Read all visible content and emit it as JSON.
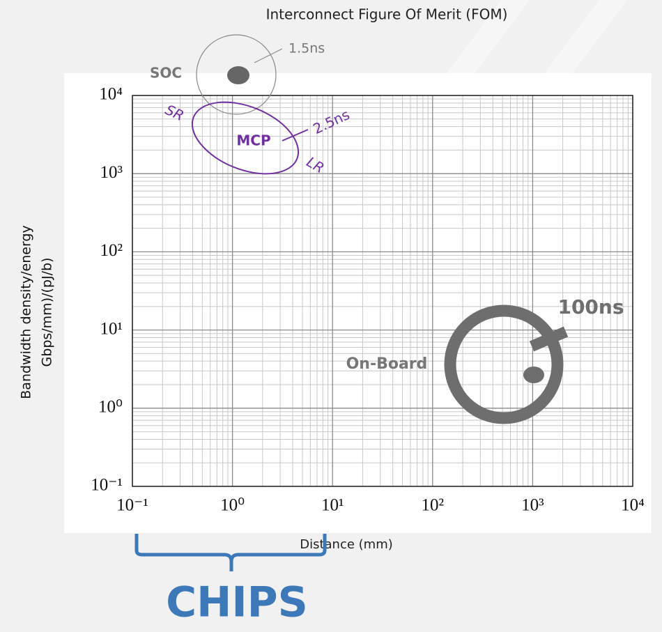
{
  "chart_data": {
    "type": "scatter",
    "title": "Interconnect  Figure Of Merit (FOM)",
    "x_label": "Distance (mm)",
    "y_label": [
      "Bandwidth density/energy",
      "Gbps/mm)/(pJ/b)"
    ],
    "x_scale": "log",
    "y_scale": "log",
    "xlim": [
      0.1,
      10000
    ],
    "ylim": [
      0.1,
      10000
    ],
    "xticks": [
      {
        "value": 0.1,
        "label": "10⁻¹"
      },
      {
        "value": 1,
        "label": "10⁰"
      },
      {
        "value": 10,
        "label": "10¹"
      },
      {
        "value": 100,
        "label": "10²"
      },
      {
        "value": 1000,
        "label": "10³"
      },
      {
        "value": 10000,
        "label": "10⁴"
      }
    ],
    "yticks": [
      {
        "value": 0.1,
        "label": "10⁻¹"
      },
      {
        "value": 1,
        "label": "10⁰"
      },
      {
        "value": 10,
        "label": "10¹"
      },
      {
        "value": 100,
        "label": "10²"
      },
      {
        "value": 1000,
        "label": "10³"
      },
      {
        "value": 10000,
        "label": "10⁴"
      }
    ],
    "grid": true,
    "minor_grid": true,
    "annotations": {
      "soc": "SOC",
      "soc_latency": "1.5ns",
      "sr": "SR",
      "mcp": "MCP",
      "mcp_latency": "2.5ns",
      "lr": "LR",
      "board_latency": "100ns",
      "on_board": "On-Board",
      "chips": "CHIPS"
    }
  }
}
